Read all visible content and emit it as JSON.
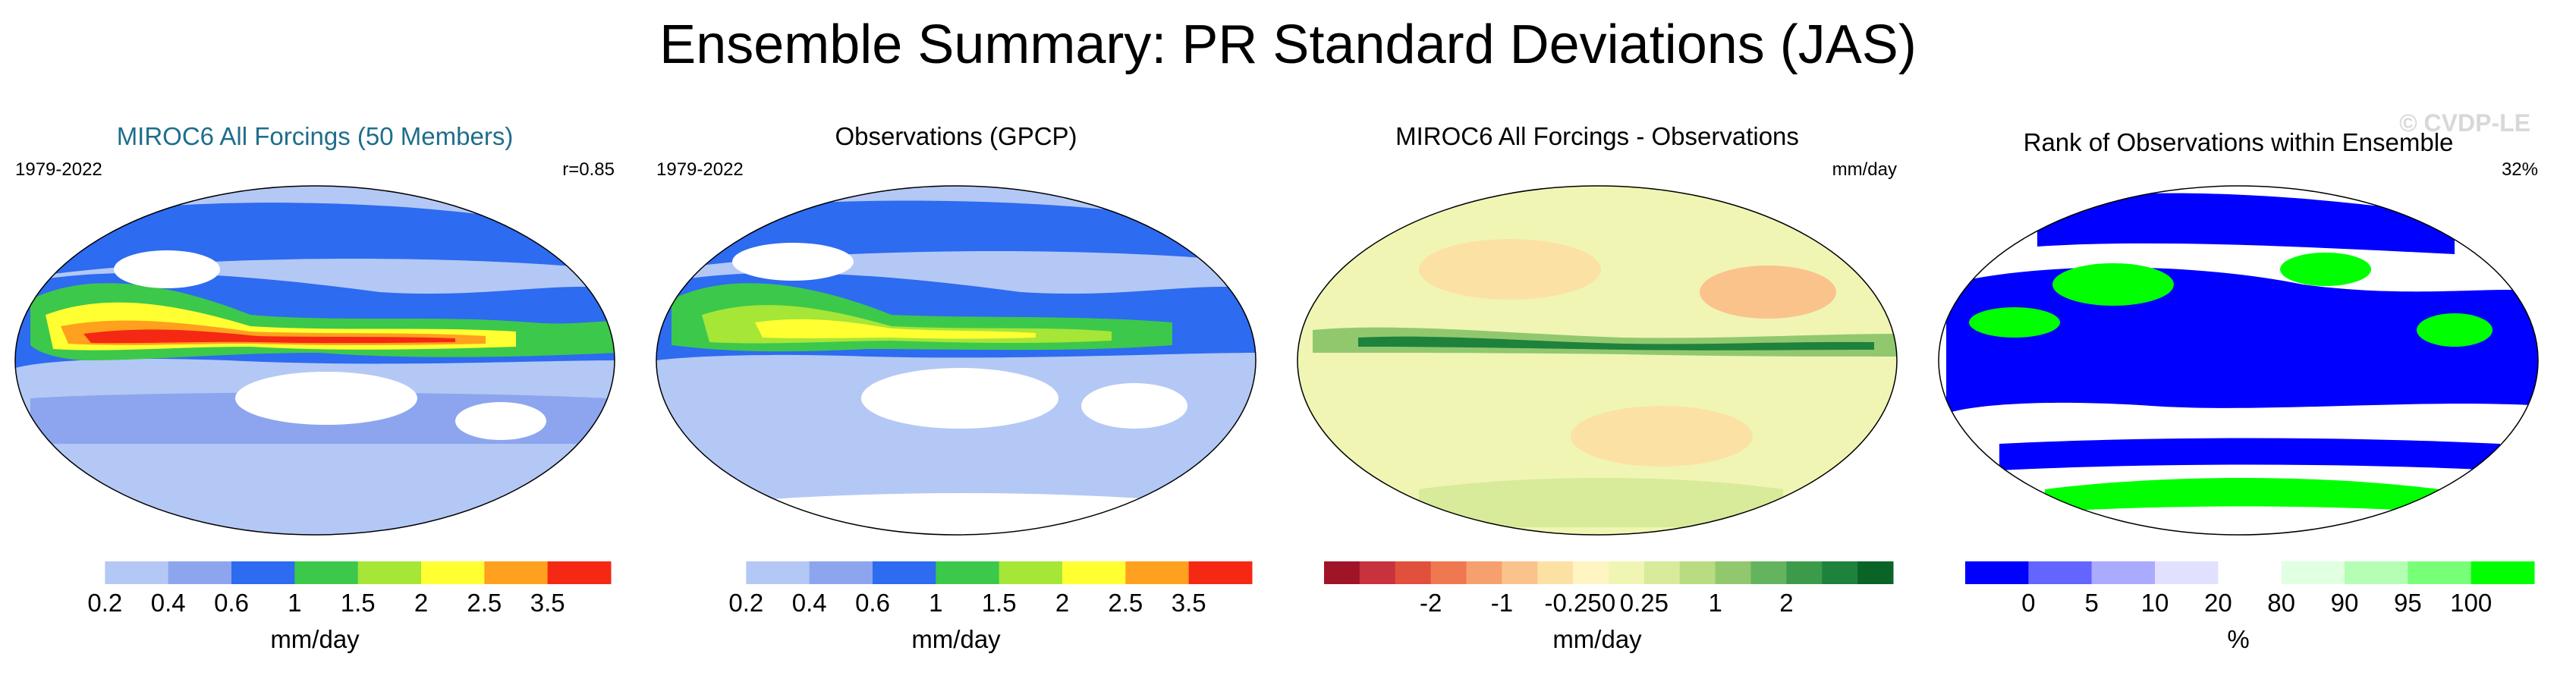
{
  "figure": {
    "title": "Ensemble Summary: PR Standard Deviations (JAS)",
    "watermark": "© CVDP-LE"
  },
  "chart_data": [
    {
      "type": "heatmap",
      "title": "MIROC6 All Forcings (50 Members)",
      "period": "1979-2022",
      "annotation": "r=0.85",
      "projection": "Robinson (global map)",
      "colorbar": {
        "label": "mm/day",
        "levels": [
          0.2,
          0.4,
          0.6,
          1,
          1.5,
          2,
          2.5,
          3.5
        ],
        "tick_labels": [
          "0.2",
          "0.4",
          "0.6",
          "1",
          "1.5",
          "2",
          "2.5",
          "3.5"
        ],
        "colors": [
          "#ffffff",
          "#b4c8f5",
          "#8ca5ee",
          "#2d6bf0",
          "#3cc84b",
          "#a5e637",
          "#ffff32",
          "#ffa01e",
          "#f52814"
        ]
      }
    },
    {
      "type": "heatmap",
      "title": "Observations (GPCP)",
      "period": "1979-2022",
      "projection": "Robinson (global map)",
      "colorbar": {
        "label": "mm/day",
        "levels": [
          0.2,
          0.4,
          0.6,
          1,
          1.5,
          2,
          2.5,
          3.5
        ],
        "tick_labels": [
          "0.2",
          "0.4",
          "0.6",
          "1",
          "1.5",
          "2",
          "2.5",
          "3.5"
        ],
        "colors": [
          "#ffffff",
          "#b4c8f5",
          "#8ca5ee",
          "#2d6bf0",
          "#3cc84b",
          "#a5e637",
          "#ffff32",
          "#ffa01e",
          "#f52814"
        ]
      }
    },
    {
      "type": "heatmap",
      "title": "MIROC6 All Forcings - Observations",
      "units": "mm/day",
      "projection": "Robinson (global map)",
      "colorbar": {
        "label": "mm/day",
        "levels": [
          -3,
          -2.5,
          -2,
          -1.5,
          -1,
          -0.5,
          -0.25,
          0,
          0.25,
          0.5,
          1,
          1.5,
          2,
          2.5,
          3
        ],
        "tick_labels": [
          "-2",
          "-1",
          "-0.25",
          "0",
          "0.25",
          "1",
          "2"
        ],
        "tick_values": [
          -2,
          -1,
          -0.25,
          0,
          0.25,
          1,
          2
        ],
        "colors": [
          "#a01428",
          "#c8323c",
          "#e1503c",
          "#f07850",
          "#f5a06e",
          "#fac38c",
          "#fce1a5",
          "#fff5c3",
          "#f0f5b4",
          "#d7eb9b",
          "#b9dc82",
          "#91c86e",
          "#64b45f",
          "#3c9b4b",
          "#1e823c",
          "#0a6428"
        ]
      }
    },
    {
      "type": "heatmap",
      "title": "Rank of Observations within Ensemble",
      "annotation": "32%",
      "projection": "Robinson (global map)",
      "colorbar": {
        "label": "%",
        "levels": [
          0,
          5,
          10,
          20,
          80,
          90,
          95,
          100
        ],
        "tick_labels": [
          "0",
          "5",
          "10",
          "20",
          "80",
          "90",
          "95",
          "100"
        ],
        "colors": [
          "#0000ff",
          "#6464ff",
          "#aaaaff",
          "#e1e1ff",
          "#ffffff",
          "#e1ffe1",
          "#b4ffb4",
          "#78ff78",
          "#00ff00"
        ]
      }
    }
  ]
}
